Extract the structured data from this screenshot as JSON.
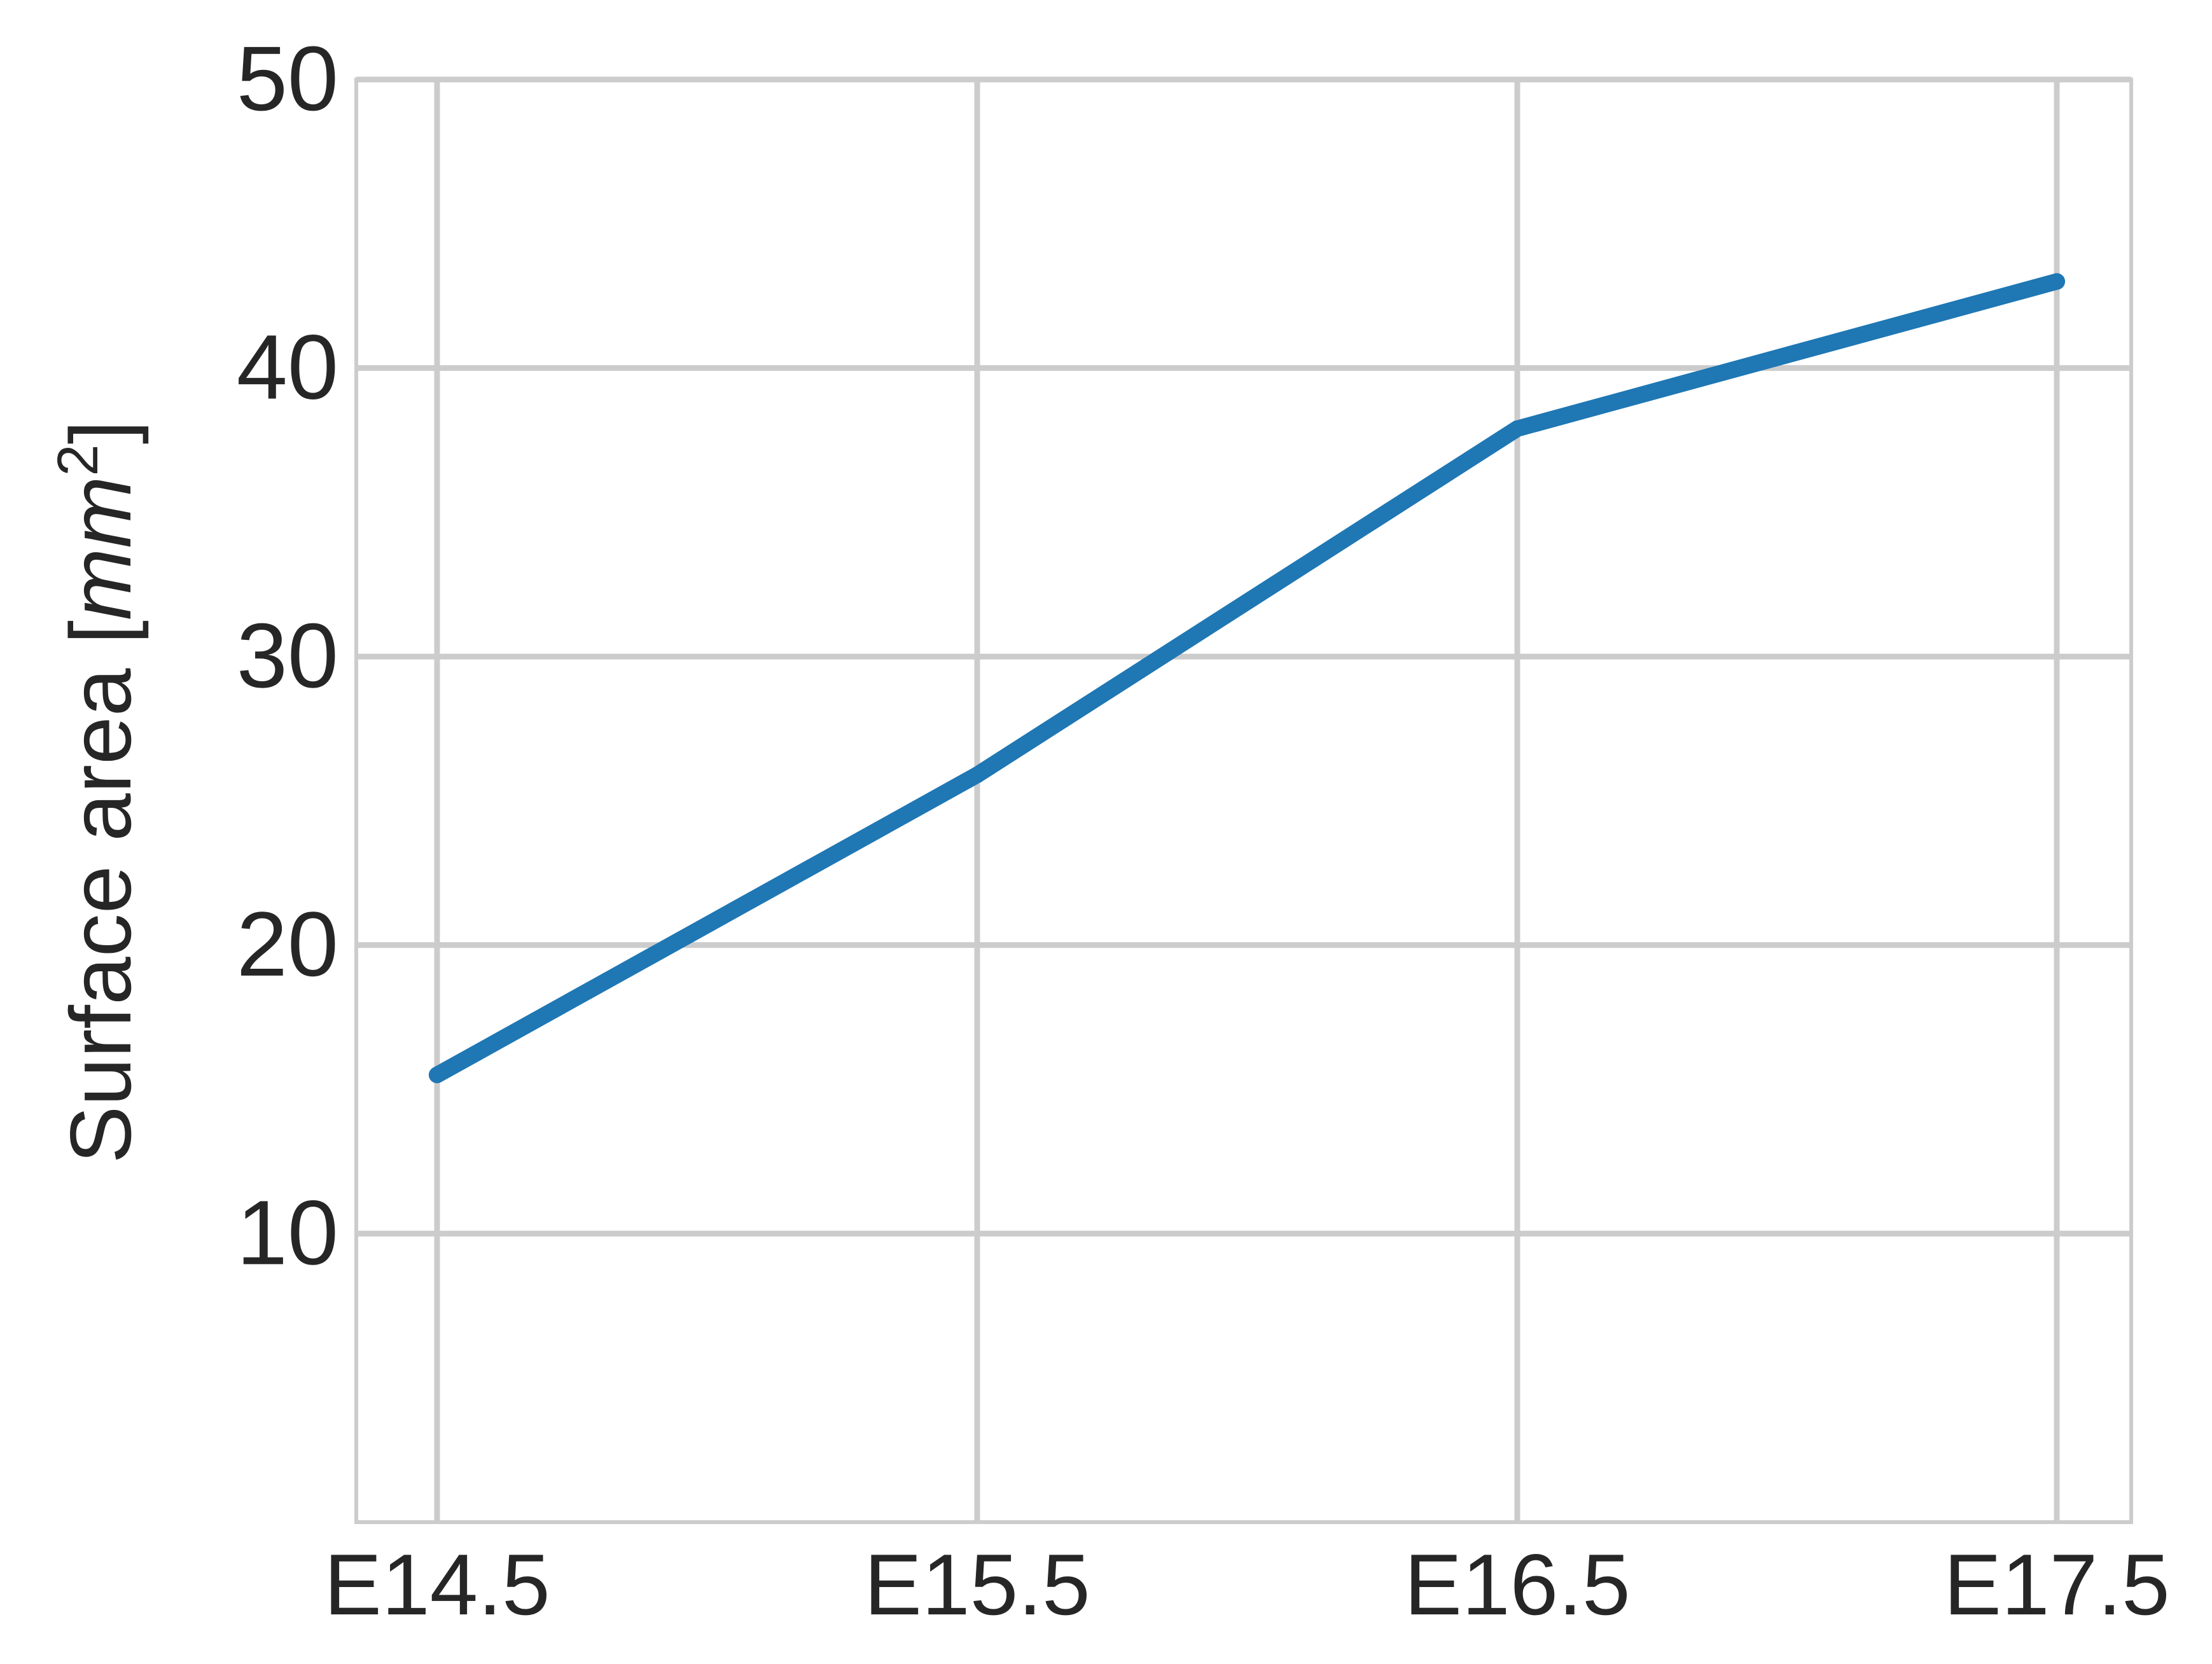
{
  "chart_data": {
    "type": "line",
    "categories": [
      "E14.5",
      "E15.5",
      "E16.5",
      "E17.5"
    ],
    "series": [
      {
        "values": [
          15.5,
          25.9,
          37.9,
          43.0
        ],
        "color": "#1f77b4"
      }
    ],
    "xlabel": "",
    "ylabel": {
      "prefix": "Surface area [",
      "unit": "mm",
      "exponent": "2",
      "suffix": "]"
    },
    "ylim": [
      0,
      50
    ],
    "yticks": [
      "10",
      "20",
      "30",
      "40",
      "50"
    ],
    "grid": true,
    "gridline_color": "#cccccc"
  }
}
